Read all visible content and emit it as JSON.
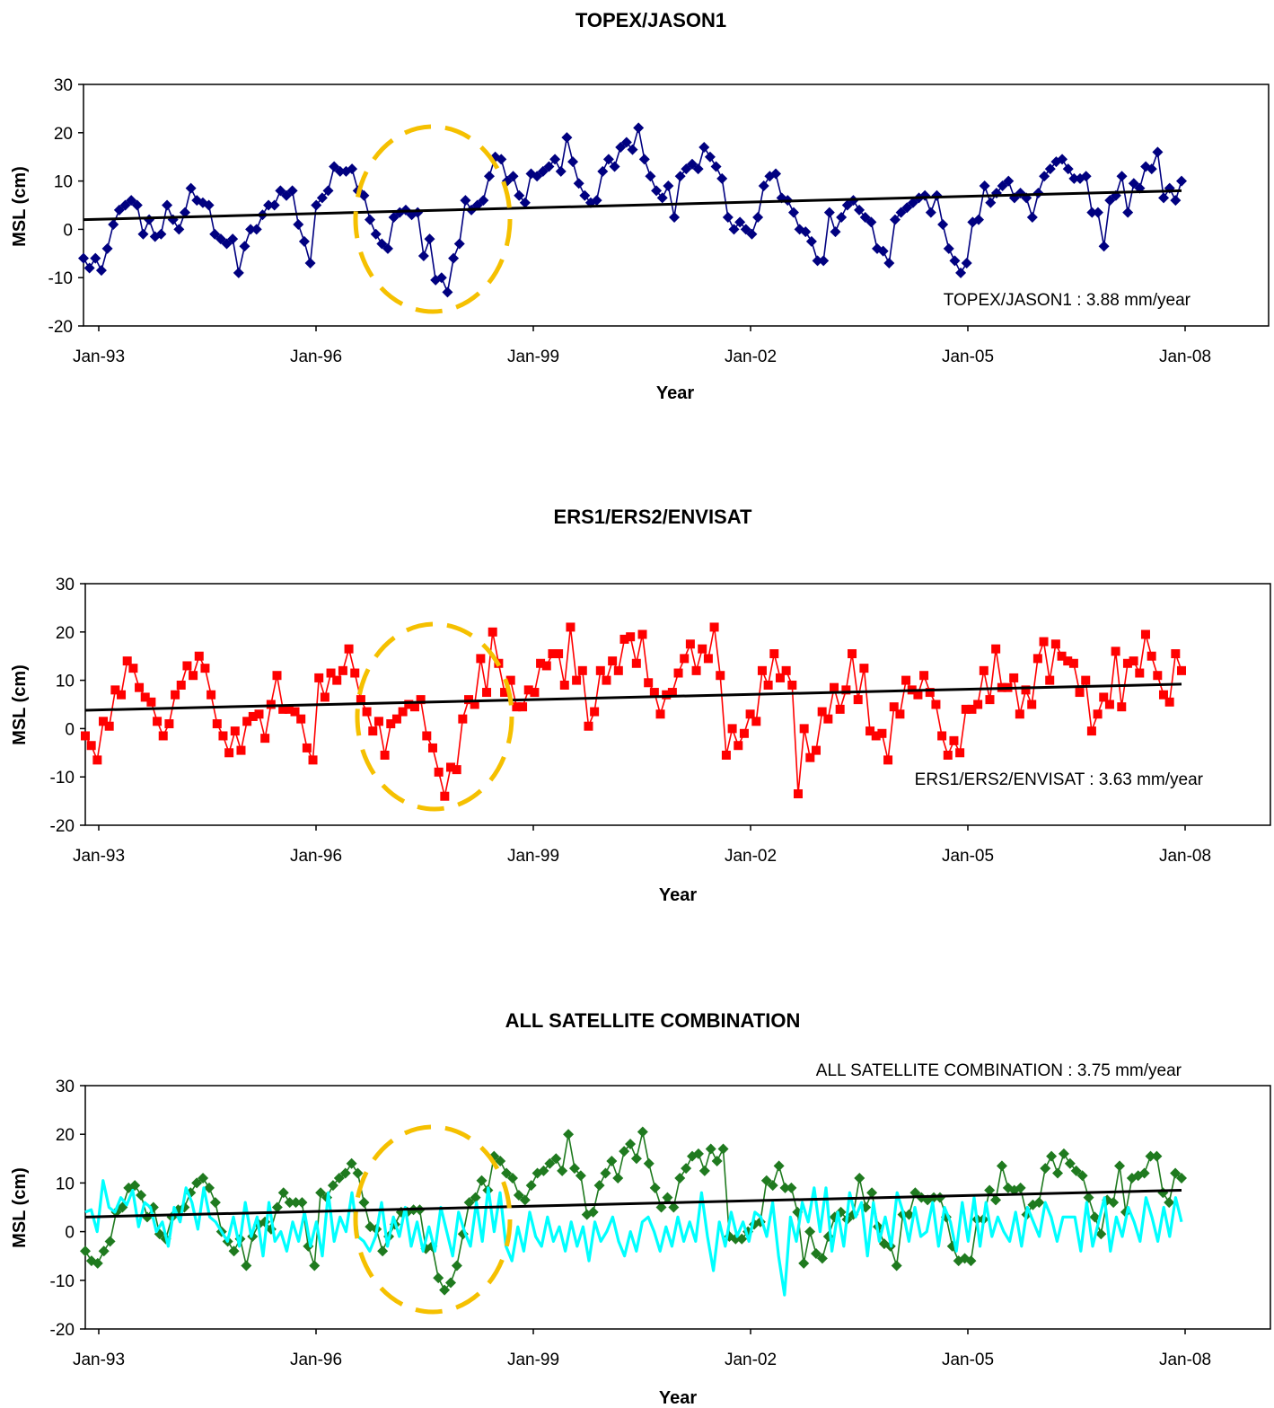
{
  "colors": {
    "topex": "#000080",
    "ers": "#ff0000",
    "combo": "#1f7a1f",
    "combo_secondary": "#00ffff",
    "trend": "#000000",
    "highlight": "#f5c000"
  },
  "chart_data": [
    {
      "type": "line",
      "title": "TOPEX/JASON1",
      "xlabel": "Year",
      "ylabel": "MSL (cm)",
      "ylim": [
        -20,
        30
      ],
      "yticks": [
        "30",
        "20",
        "10",
        "0",
        "-10",
        "-20"
      ],
      "xticks": [
        "Jan-93",
        "Jan-96",
        "Jan-99",
        "Jan-02",
        "Jan-05",
        "Jan-08"
      ],
      "marker": "diamond",
      "annotation": "TOPEX/JASON1 : 3.88 mm/year",
      "trend": {
        "start": 2.0,
        "end": 8.0
      },
      "series": [
        {
          "values": [
            -6,
            -8,
            -6,
            -8.5,
            -4,
            1,
            4,
            5,
            6,
            5,
            -1,
            2,
            -1.5,
            -1,
            5,
            2,
            0,
            3.5,
            8.5,
            6,
            5.5,
            5,
            -1,
            -2,
            -3,
            -2,
            -9,
            -3.5,
            0,
            0,
            3,
            5,
            5,
            8,
            7,
            8,
            1,
            -2.5,
            -7,
            5,
            6.5,
            8,
            13,
            12,
            12,
            12.5,
            8,
            7,
            2,
            -1,
            -3,
            -4,
            2.5,
            3.5,
            4,
            3,
            3.5,
            -5.5,
            -2,
            -10.5,
            -10,
            -13,
            -6,
            -3,
            6,
            4,
            5,
            6,
            11,
            15,
            14.5,
            10,
            11,
            7,
            5.5,
            11.5,
            11,
            12,
            13,
            14.5,
            12,
            19,
            14,
            9.5,
            7,
            5.5,
            6,
            12,
            14.5,
            13,
            17,
            18,
            16.5,
            21,
            14.5,
            11,
            8,
            6.5,
            9,
            2.5,
            11,
            12.5,
            13.5,
            12.5,
            17,
            15,
            13,
            10.5,
            2.5,
            0,
            1.5,
            0,
            -1,
            2.5,
            9,
            11,
            11.5,
            6.5,
            6,
            3.5,
            0,
            -0.5,
            -2.5,
            -6.5,
            -6.5,
            3.5,
            -0.5,
            2.5,
            5,
            6,
            4,
            2.5,
            1.5,
            -4,
            -4.5,
            -7,
            2,
            3.5,
            4.5,
            5.5,
            6.5,
            7,
            3.5,
            7,
            1,
            -4,
            -6.5,
            -9,
            -7,
            1.5,
            2,
            9,
            5.5,
            7.5,
            9,
            10,
            6.5,
            7.5,
            6.5,
            2.5,
            7.5,
            11,
            12.5,
            14,
            14.5,
            12.5,
            10.5,
            10.5,
            11,
            3.5,
            3.5,
            -3.5,
            6,
            7,
            11,
            3.5,
            9.5,
            8.5,
            13,
            12.5,
            16,
            6.5,
            8.5,
            6,
            10
          ]
        }
      ]
    },
    {
      "type": "line",
      "title": "ERS1/ERS2/ENVISAT",
      "xlabel": "Year",
      "ylabel": "MSL (cm)",
      "ylim": [
        -20,
        30
      ],
      "yticks": [
        "30",
        "20",
        "10",
        "0",
        "-10",
        "-20"
      ],
      "xticks": [
        "Jan-93",
        "Jan-96",
        "Jan-99",
        "Jan-02",
        "Jan-05",
        "Jan-08"
      ],
      "marker": "square",
      "annotation": "ERS1/ERS2/ENVISAT : 3.63 mm/year",
      "trend": {
        "start": 3.8,
        "end": 9.2
      },
      "series": [
        {
          "values": [
            -1.5,
            -3.5,
            -6.5,
            1.5,
            0.5,
            8,
            7,
            14,
            12.5,
            8.5,
            6.5,
            5.5,
            1.5,
            -1.5,
            1,
            7,
            9,
            13,
            11,
            15,
            12.5,
            7,
            1,
            -1.5,
            -5,
            -0.5,
            -4.5,
            1.5,
            2.5,
            3,
            -2,
            5,
            11,
            4,
            4,
            3.5,
            2,
            -4,
            -6.5,
            10.5,
            6.5,
            11.5,
            10,
            12,
            16.5,
            11.5,
            6,
            3.5,
            -0.5,
            1.5,
            -5.5,
            1,
            2,
            3.5,
            5,
            4.5,
            6,
            -1.5,
            -4,
            -9,
            -14,
            -8,
            -8.5,
            2,
            6,
            5,
            14.5,
            7.5,
            20,
            13.5,
            7.5,
            10,
            4.5,
            4.5,
            8,
            7.5,
            13.5,
            13,
            15.5,
            15.5,
            9,
            21,
            10,
            12,
            0.5,
            3.5,
            12,
            10,
            14,
            12,
            18.5,
            19,
            13.5,
            19.5,
            9.5,
            7.5,
            3,
            7,
            7.5,
            11.5,
            14.5,
            17.5,
            12,
            16.5,
            14.5,
            21,
            11,
            -5.5,
            0,
            -3.5,
            -1,
            3,
            1.5,
            12,
            9,
            15.5,
            10.5,
            12,
            9,
            -13.5,
            0,
            -6,
            -4.5,
            3.5,
            2,
            8.5,
            4,
            8,
            15.5,
            6,
            12.5,
            -0.5,
            -1.5,
            -1,
            -6.5,
            4.5,
            3,
            10,
            8,
            7,
            11,
            7.5,
            5,
            -1.5,
            -5.5,
            -2.5,
            -5,
            4,
            4,
            5,
            12,
            6,
            16.5,
            8.5,
            8.5,
            10.5,
            3,
            8,
            5,
            14.5,
            18,
            10,
            17.5,
            15,
            14,
            13.5,
            7.5,
            10,
            -0.5,
            3,
            6.5,
            5,
            16,
            4.5,
            13.5,
            14,
            11.5,
            19.5,
            15,
            11,
            7,
            5.5,
            15.5,
            12
          ]
        }
      ]
    },
    {
      "type": "line",
      "title": "ALL SATELLITE COMBINATION",
      "xlabel": "Year",
      "ylabel": "MSL (cm)",
      "ylim": [
        -20,
        30
      ],
      "yticks": [
        "30",
        "20",
        "10",
        "0",
        "-10",
        "-20"
      ],
      "xticks": [
        "Jan-93",
        "Jan-96",
        "Jan-99",
        "Jan-02",
        "Jan-05",
        "Jan-08"
      ],
      "marker": "diamond",
      "annotation": "ALL SATELLITE COMBINATION : 3.75 mm/year",
      "trend": {
        "start": 3.0,
        "end": 8.5
      },
      "series": [
        {
          "values": [
            -4,
            -6,
            -6.5,
            -4,
            -2,
            4,
            5,
            9,
            9.5,
            7.5,
            3,
            5,
            -0.5,
            -1.5,
            3,
            4.5,
            5,
            8,
            10,
            11,
            9,
            6,
            0,
            -2,
            -4,
            -1.5,
            -7,
            -1,
            1.5,
            2,
            0.5,
            5,
            8,
            6,
            6,
            6,
            -3,
            -7,
            8,
            7,
            9.5,
            11,
            12,
            14,
            12,
            6,
            1,
            0.5,
            -4,
            -1,
            1.5,
            4,
            4,
            4.5,
            4.5,
            -3.5,
            -3,
            -9.5,
            -12,
            -10.5,
            -7,
            -0.5,
            6,
            7,
            10.5,
            8.5,
            15.5,
            14.5,
            12,
            11,
            7.5,
            6.5,
            9.5,
            12,
            12.5,
            14,
            15,
            12.5,
            20,
            13,
            11.5,
            3.5,
            4,
            9.5,
            12,
            14.5,
            11,
            16.5,
            18,
            15,
            20.5,
            14,
            9,
            5,
            7,
            5,
            11,
            13,
            15.5,
            16,
            12.5,
            17,
            14.5,
            17,
            -1,
            -1.5,
            -1.5,
            0,
            1.5,
            2,
            10.5,
            9.5,
            13.5,
            9,
            9,
            4,
            -6.5,
            0,
            -4.5,
            -5.5,
            -1,
            3,
            4,
            2.5,
            3.5,
            11,
            5,
            8,
            1,
            -2.5,
            -3,
            -7,
            3.5,
            3.5,
            8,
            7,
            6.5,
            7,
            7,
            3,
            -3,
            -6,
            -5.5,
            -6,
            2.5,
            2.5,
            8.5,
            6.5,
            13.5,
            9,
            8.5,
            9,
            3.5,
            5.5,
            6,
            13,
            15.5,
            12,
            16,
            14,
            12.5,
            11.5,
            7,
            3,
            -0.5,
            6.5,
            6,
            13.5,
            4,
            11,
            11.5,
            12,
            15.5,
            15.5,
            8,
            6,
            12,
            11
          ]
        },
        {
          "values": [
            4,
            4.5,
            0,
            10.5,
            5,
            4,
            7,
            5.5,
            8.5,
            1,
            6,
            5,
            0,
            2,
            -3,
            5,
            2,
            9,
            6,
            0.5,
            9,
            3,
            2,
            0,
            -2,
            3,
            -3,
            6,
            -1,
            3,
            -5,
            6,
            -2,
            0,
            -4,
            2,
            -2,
            4,
            -3,
            2,
            -5,
            8,
            -2,
            3,
            0,
            8,
            -1,
            -2,
            -4,
            -1,
            6,
            -3,
            3,
            -1,
            5,
            -3,
            2,
            -4,
            1,
            -4,
            5,
            0,
            -5,
            4,
            0,
            -3,
            6,
            -2,
            9,
            0,
            8,
            -3,
            -6,
            1,
            -4,
            4,
            -1,
            -3,
            3,
            -2,
            1,
            -4,
            2,
            -3,
            1,
            -6,
            2,
            -2,
            0,
            3,
            -2,
            -5,
            0,
            -4,
            2,
            3,
            0,
            -4,
            1,
            -3,
            3,
            -2,
            2,
            -2,
            8,
            -1,
            -8,
            2,
            -3,
            4,
            -1,
            2,
            -2,
            4,
            3,
            -1,
            6,
            -5,
            -13,
            3,
            -2,
            6,
            2,
            9,
            0,
            9,
            -4,
            4,
            -3,
            8,
            3,
            6,
            -5,
            6,
            -2,
            3,
            -3,
            8,
            4,
            -2,
            5,
            -1,
            0,
            6,
            -3,
            5,
            2,
            -4,
            6,
            -2,
            7,
            -3,
            6,
            -1,
            3,
            0,
            -2,
            4,
            -3,
            5,
            2,
            -1,
            6,
            3,
            -2,
            3,
            3,
            3,
            -4,
            6,
            -3,
            2,
            7,
            -4,
            3,
            -1,
            5,
            2,
            -2,
            7,
            3,
            -2,
            5,
            -1,
            7,
            2
          ]
        }
      ]
    }
  ]
}
